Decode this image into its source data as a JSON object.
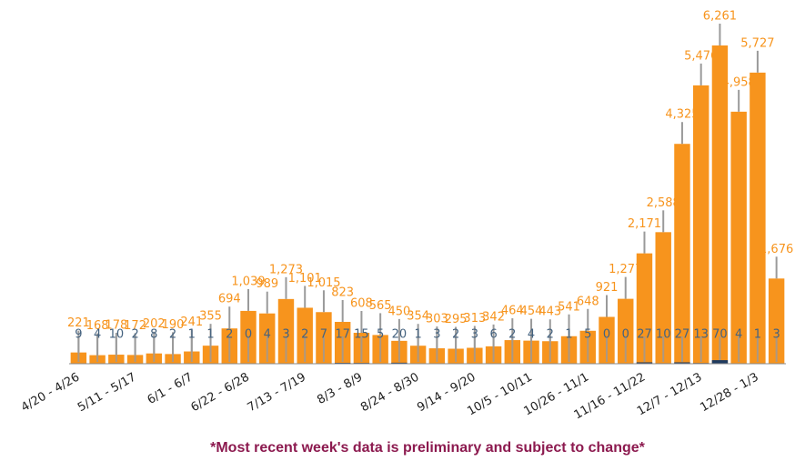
{
  "chart_data": {
    "type": "bar",
    "categories": [
      "4/20 - 4/26",
      null,
      null,
      "5/11 - 5/17",
      null,
      null,
      "6/1 - 6/7",
      null,
      null,
      "6/22 - 6/28",
      null,
      null,
      "7/13 - 7/19",
      null,
      null,
      "8/3 - 8/9",
      null,
      null,
      "8/24 - 8/30",
      null,
      null,
      "9/14 - 9/20",
      null,
      null,
      "10/5 - 10/11",
      null,
      null,
      "10/26 - 11/1",
      null,
      null,
      "11/16 - 11/22",
      null,
      null,
      "12/7 - 12/13",
      null,
      null,
      "12/28 - 1/3",
      null
    ],
    "series": [
      {
        "color": "#f7941d",
        "values": [
          221,
          168,
          178,
          172,
          202,
          190,
          241,
          355,
          694,
          1039,
          989,
          1273,
          1101,
          1015,
          823,
          608,
          565,
          450,
          354,
          303,
          295,
          313,
          342,
          464,
          454,
          443,
          541,
          648,
          921,
          1277,
          2171,
          2588,
          4325,
          5476,
          6261,
          4958,
          5727,
          1676
        ],
        "value_labels": [
          "221",
          "168",
          "178",
          "172",
          "202",
          "190",
          "241",
          "355",
          "694",
          "1,039",
          "989",
          "1,273",
          "1,101",
          "1,015",
          "823",
          "608",
          "565",
          "450",
          "354",
          "303",
          "295",
          "313",
          "342",
          "464",
          "454",
          "443",
          "541",
          "648",
          "921",
          "1,277",
          "2,171",
          "2,588",
          "4,325",
          "5,476",
          "6,261",
          "4,958",
          "5,727",
          "1,676"
        ]
      },
      {
        "color": "#1f3a5f",
        "values": [
          9,
          4,
          10,
          2,
          8,
          2,
          1,
          1,
          2,
          0,
          4,
          3,
          2,
          7,
          17,
          15,
          5,
          20,
          1,
          3,
          2,
          3,
          6,
          2,
          4,
          2,
          1,
          5,
          0,
          0,
          27,
          10,
          27,
          13,
          70,
          4,
          1,
          3
        ]
      }
    ],
    "note": "*Most recent week's data is preliminary and subject to change*"
  }
}
